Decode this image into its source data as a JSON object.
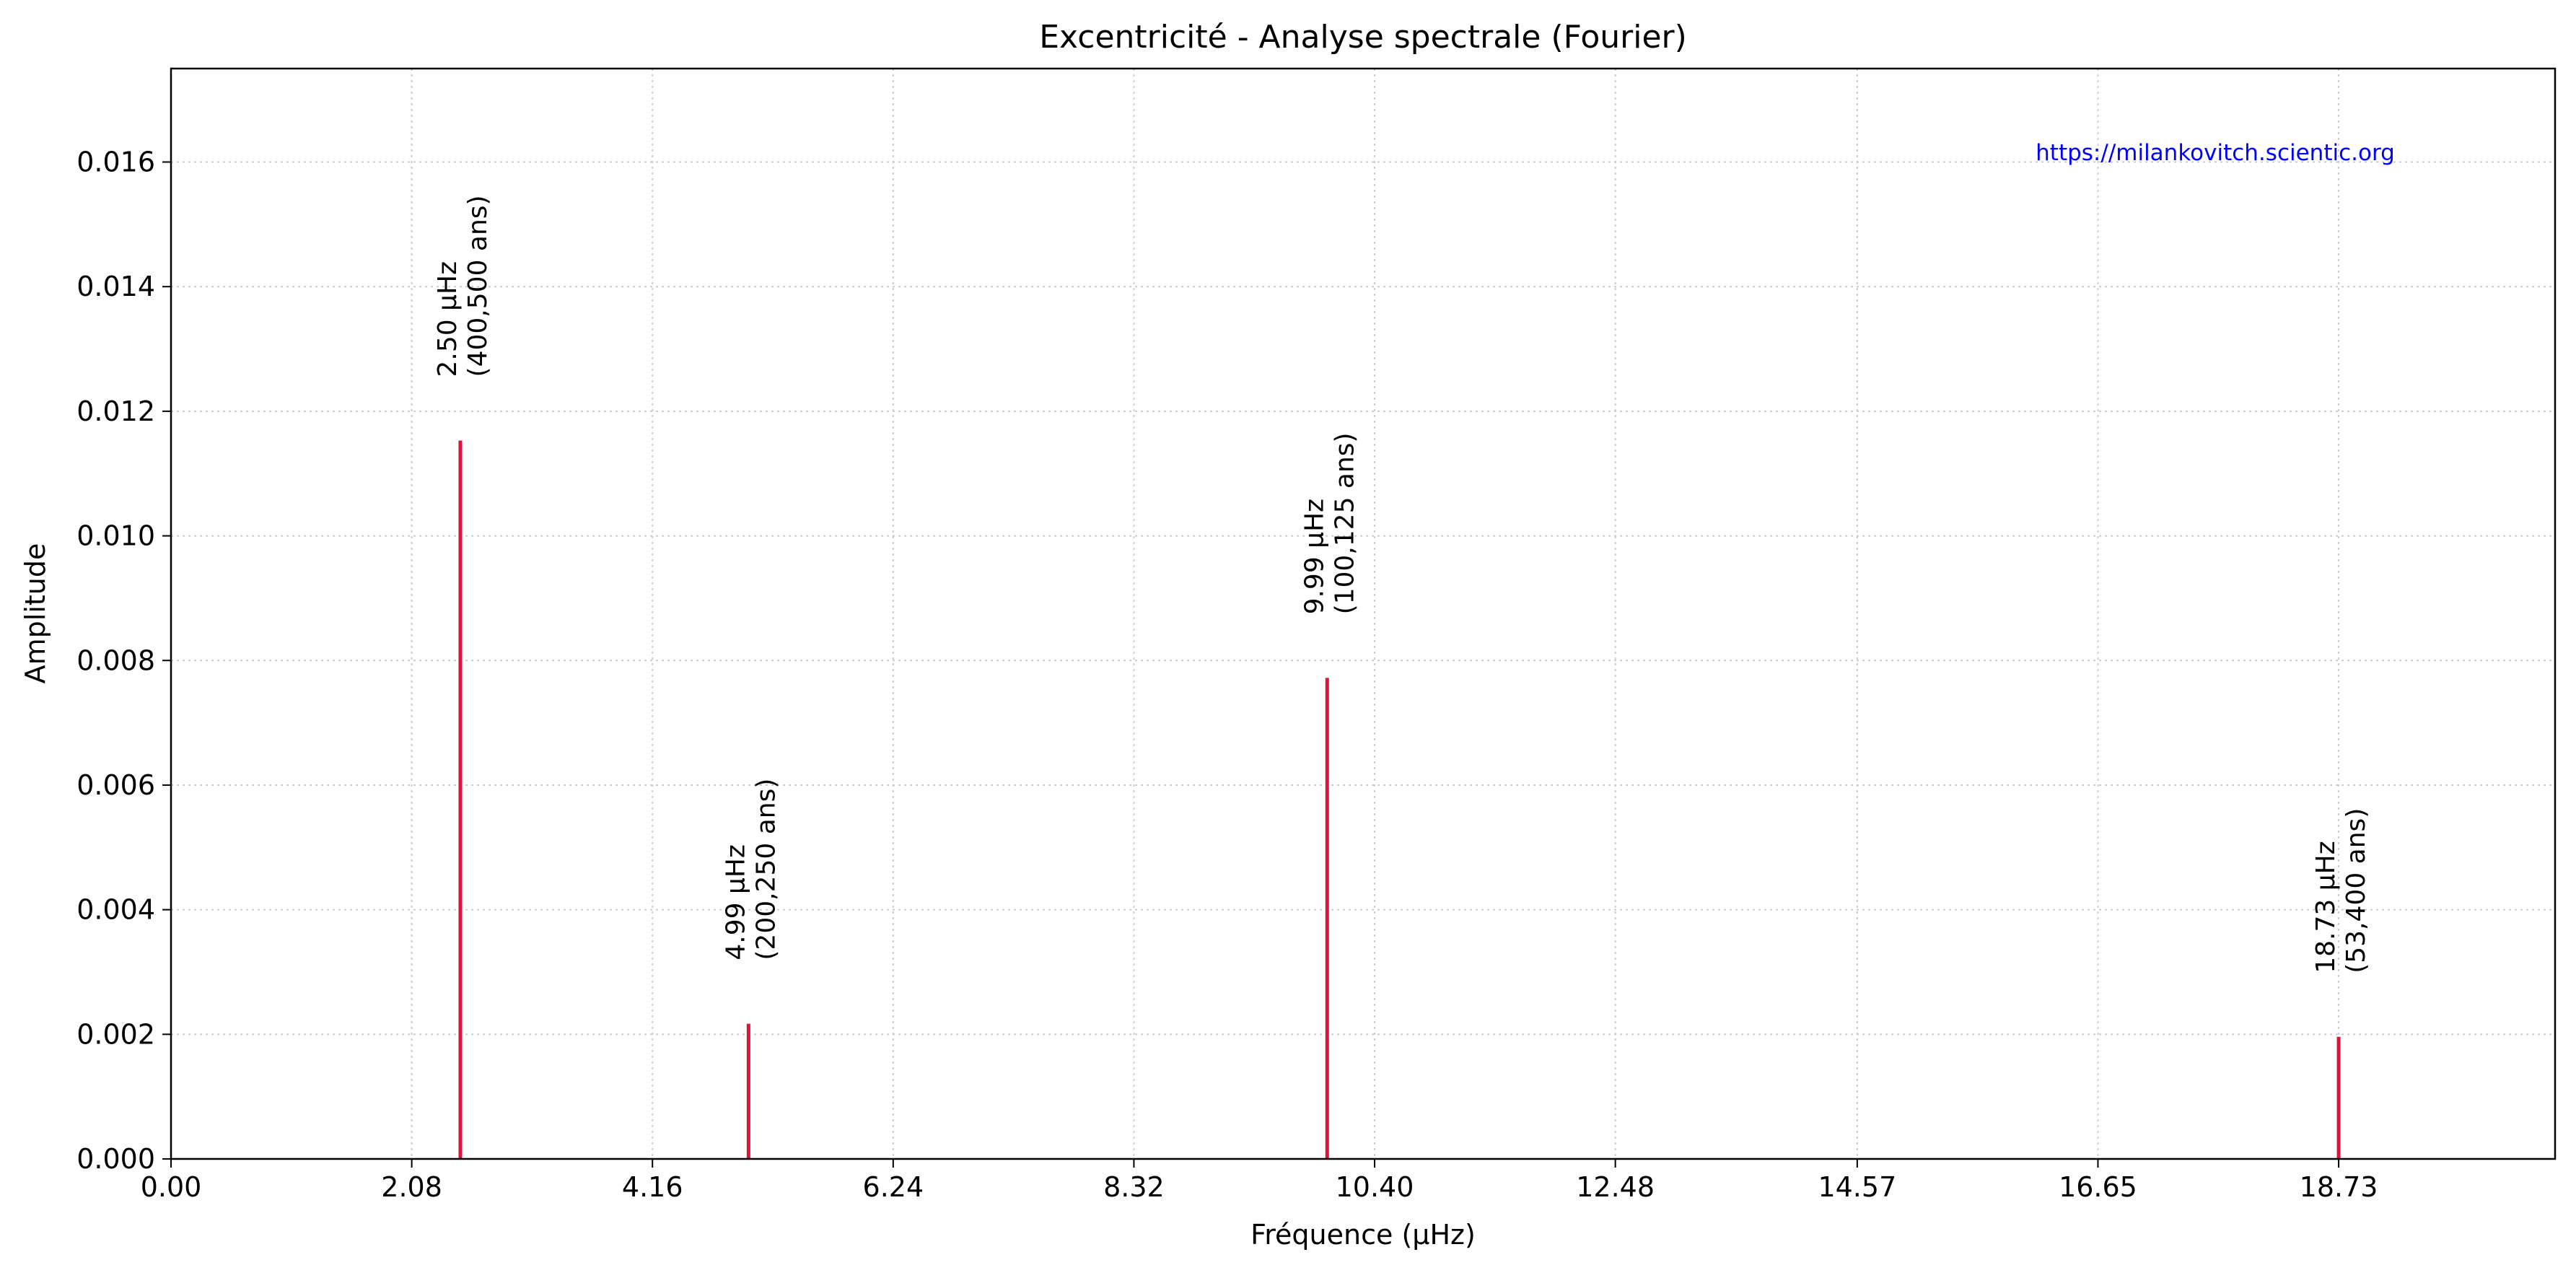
{
  "chart_data": {
    "type": "bar",
    "title": "Excentricité - Analyse spectrale (Fourier)",
    "xlabel": "Fréquence (µHz)",
    "ylabel": "Amplitude",
    "xlim": [
      0,
      20.6
    ],
    "ylim": [
      0,
      0.0175
    ],
    "xticks": [
      "0.00",
      "2.08",
      "4.16",
      "6.24",
      "8.32",
      "10.40",
      "12.48",
      "14.57",
      "16.65",
      "18.73"
    ],
    "xtick_values": [
      0,
      2.08,
      4.16,
      6.24,
      8.32,
      10.4,
      12.48,
      14.57,
      16.65,
      18.73
    ],
    "yticks": [
      "0.000",
      "0.002",
      "0.004",
      "0.006",
      "0.008",
      "0.010",
      "0.012",
      "0.014",
      "0.016"
    ],
    "ytick_values": [
      0,
      0.002,
      0.004,
      0.006,
      0.008,
      0.01,
      0.012,
      0.014,
      0.016
    ],
    "grid": true,
    "line_color": "#dc143c",
    "series": [
      {
        "x": [
          2.5,
          4.99,
          9.99,
          18.73
        ],
        "values": [
          0.01153,
          0.00217,
          0.00772,
          0.00196
        ]
      }
    ],
    "annotations": [
      {
        "freq": "2.50 µHz",
        "period": "(400,500 ans)"
      },
      {
        "freq": "4.99 µHz",
        "period": "(200,250 ans)"
      },
      {
        "freq": "9.99 µHz",
        "period": "(100,125 ans)"
      },
      {
        "freq": "18.73 µHz",
        "period": "(53,400 ans)"
      }
    ],
    "watermark": "https://milankovitch.scientic.org",
    "watermark_color": "#0000ff"
  }
}
